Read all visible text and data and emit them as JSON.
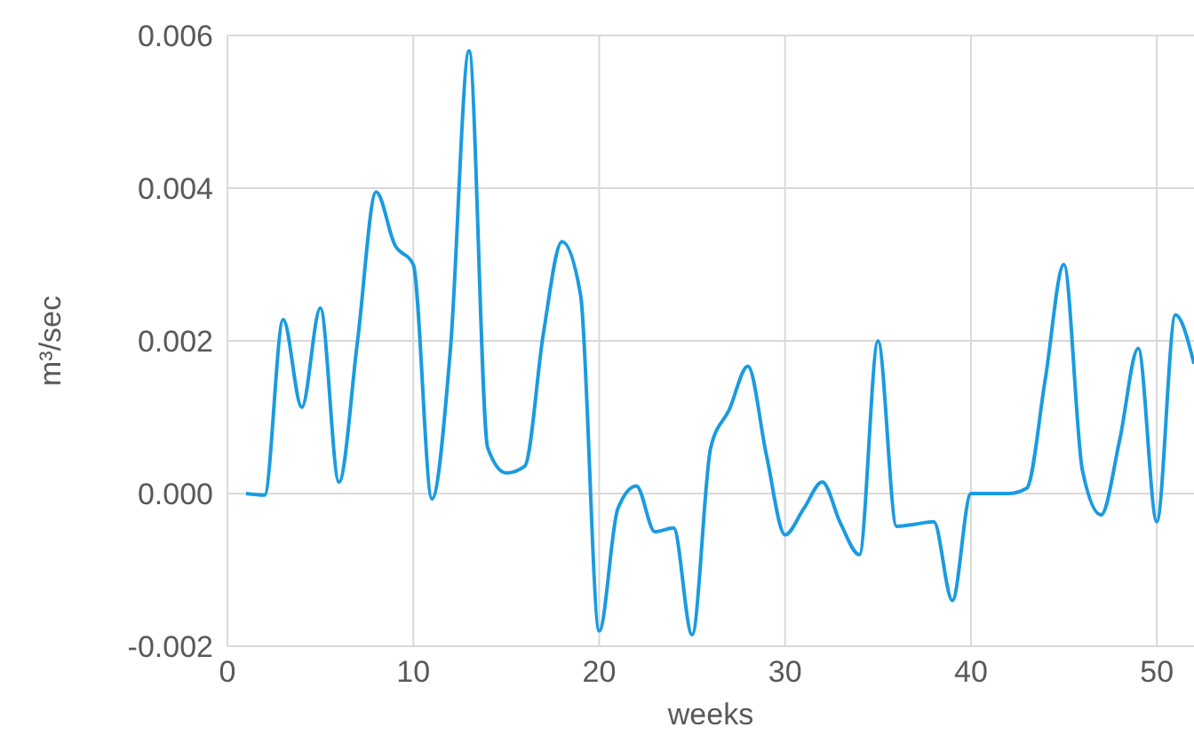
{
  "chart_data": {
    "type": "line",
    "xlabel": "weeks",
    "ylabel": "m³/sec",
    "x": [
      1,
      2,
      3,
      4,
      5,
      6,
      7,
      8,
      9,
      10,
      11,
      12,
      13,
      14,
      15,
      16,
      17,
      18,
      19,
      20,
      21,
      22,
      23,
      24,
      25,
      26,
      27,
      28,
      29,
      30,
      31,
      32,
      33,
      34,
      35,
      36,
      37,
      38,
      39,
      40,
      41,
      42,
      43,
      44,
      45,
      46,
      47,
      48,
      49,
      50,
      51,
      52
    ],
    "series": [
      {
        "color": "#1a9be0",
        "values": [
          0.0,
          -2e-05,
          0.00228,
          0.00113,
          0.00243,
          0.00015,
          0.002,
          0.00395,
          0.00326,
          0.003,
          -7e-05,
          0.0019,
          0.0058,
          0.0006,
          0.00027,
          0.00036,
          0.0021,
          0.0033,
          0.0026,
          -0.0018,
          -0.0002,
          0.0001,
          -0.0005,
          -0.00045,
          -0.00185,
          0.0006,
          0.0011,
          0.00167,
          0.0005,
          -0.00054,
          -0.0002,
          0.00015,
          -0.0004,
          -0.0008,
          0.002,
          -0.00043,
          -0.0004,
          -0.00037,
          -0.0014,
          0.0,
          0.0,
          0.0,
          7e-05,
          0.0015,
          0.003,
          0.0003,
          -0.00028,
          0.0007,
          0.0019,
          -0.00037,
          0.00234,
          0.0017
        ]
      }
    ],
    "xlim": [
      0,
      52
    ],
    "xticks": [
      0,
      10,
      20,
      30,
      40,
      50
    ],
    "ylim": [
      -0.002,
      0.006
    ],
    "yticks": [
      {
        "value": -0.002,
        "label": "-0.002"
      },
      {
        "value": 0,
        "label": "0.000"
      },
      {
        "value": 0.002,
        "label": "0.002"
      },
      {
        "value": 0.004,
        "label": "0.004"
      },
      {
        "value": 0.006,
        "label": "0.006"
      }
    ],
    "grid": true,
    "legend": false,
    "marker": "none",
    "line_style": "solid"
  }
}
